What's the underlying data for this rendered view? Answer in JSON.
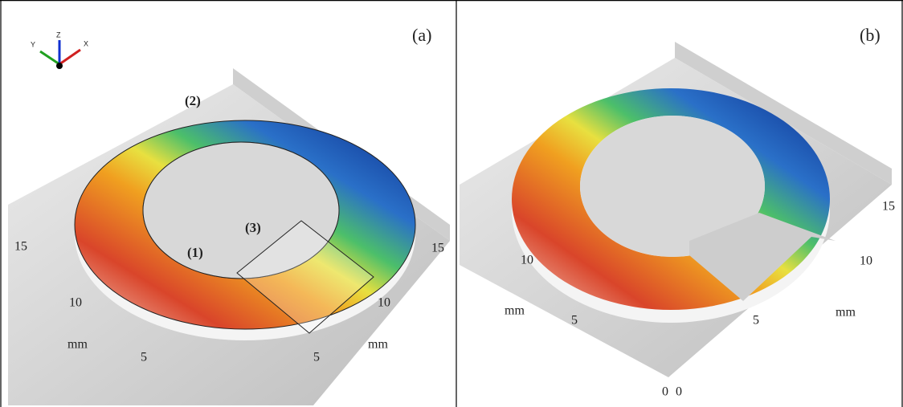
{
  "panels": [
    {
      "label": "(a)",
      "triad": [
        "Y",
        "Z",
        "X"
      ],
      "annotations": [
        "(2)",
        "(3)",
        "(1)"
      ],
      "left_axis": [
        "15",
        "10",
        "mm",
        "5"
      ],
      "right_axis": [
        "15",
        "10",
        "mm",
        "5"
      ]
    },
    {
      "label": "(b)",
      "left_axis": [
        "10",
        "mm",
        "5",
        "0"
      ],
      "right_axis": [
        "15",
        "10",
        "mm",
        "5",
        "0"
      ]
    }
  ]
}
